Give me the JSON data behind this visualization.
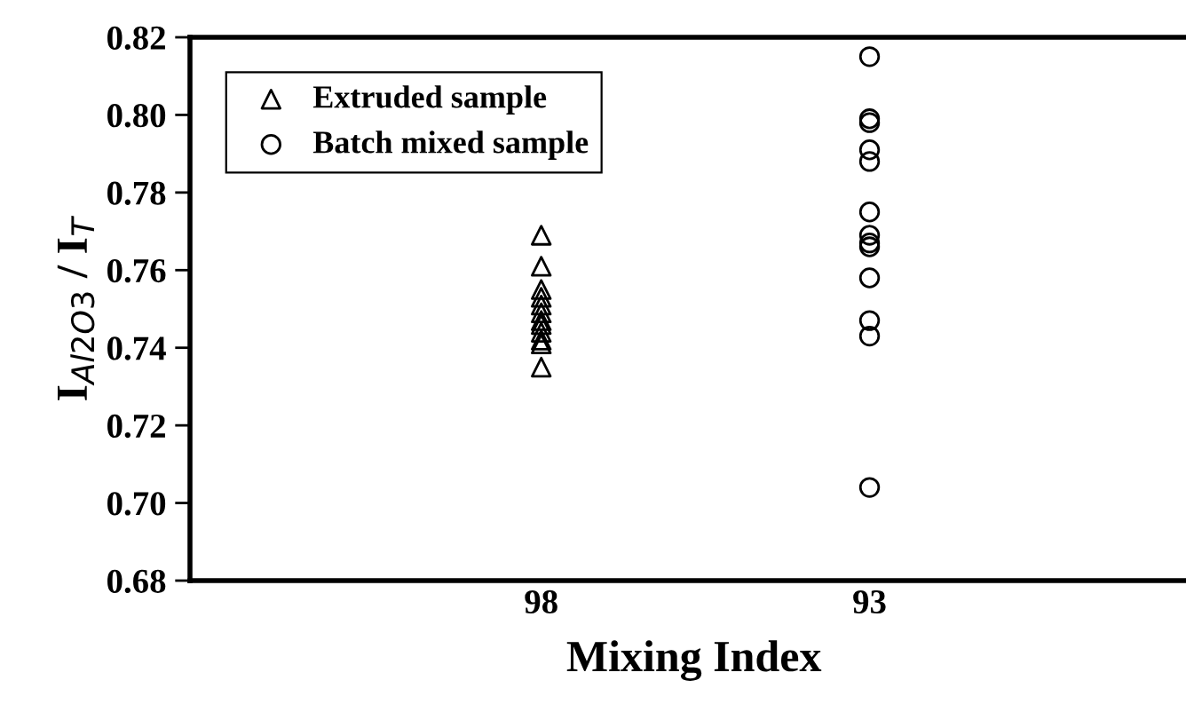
{
  "chart_data": {
    "type": "scatter",
    "xlabel": "Mixing Index",
    "ylabel": "I$_{Al2O3}$ / I$_{T}$",
    "categories": [
      "98",
      "93"
    ],
    "series": [
      {
        "name": "Extruded sample",
        "marker": "triangle",
        "color": "#000000",
        "x": [
          "98",
          "98",
          "98",
          "98",
          "98",
          "98",
          "98",
          "98",
          "98",
          "98",
          "98",
          "98"
        ],
        "values": [
          0.769,
          0.761,
          0.755,
          0.753,
          0.751,
          0.749,
          0.747,
          0.746,
          0.744,
          0.742,
          0.741,
          0.735
        ]
      },
      {
        "name": "Batch mixed sample",
        "marker": "circle",
        "color": "#000000",
        "x": [
          "93",
          "93",
          "93",
          "93",
          "93",
          "93",
          "93",
          "93",
          "93",
          "93",
          "93",
          "93",
          "93"
        ],
        "values": [
          0.815,
          0.799,
          0.798,
          0.791,
          0.788,
          0.775,
          0.769,
          0.767,
          0.766,
          0.758,
          0.747,
          0.743,
          0.704
        ]
      }
    ],
    "ylim": [
      0.68,
      0.82
    ],
    "yticks": [
      {
        "value": 0.68,
        "label": "0.68"
      },
      {
        "value": 0.7,
        "label": "0.70"
      },
      {
        "value": 0.72,
        "label": "0.72"
      },
      {
        "value": 0.74,
        "label": "0.74"
      },
      {
        "value": 0.76,
        "label": "0.76"
      },
      {
        "value": 0.78,
        "label": "0.78"
      },
      {
        "value": 0.8,
        "label": "0.80"
      },
      {
        "value": 0.82,
        "label": "0.82"
      }
    ],
    "grid": false,
    "legend": "top left"
  }
}
